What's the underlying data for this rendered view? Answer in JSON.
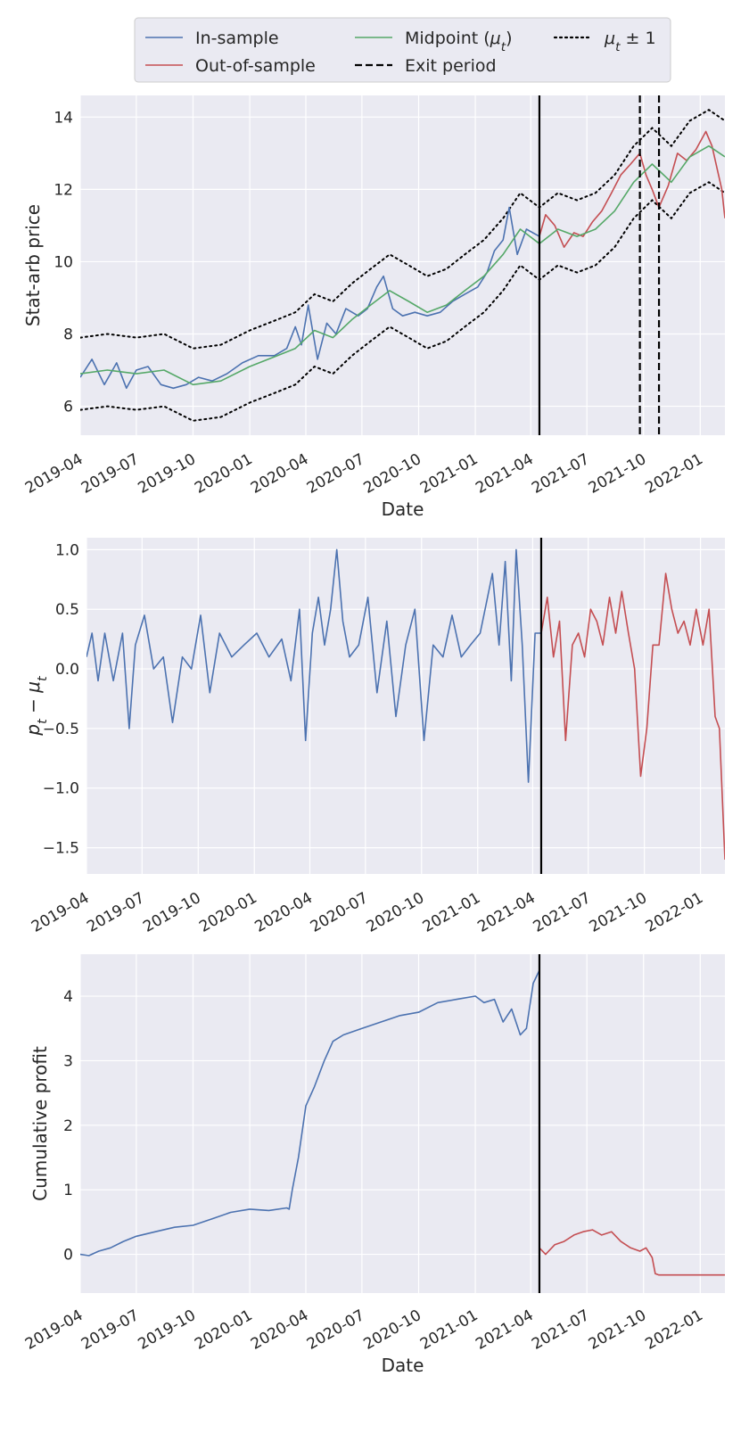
{
  "legend": {
    "location": "top-center",
    "entries": [
      {
        "label": "In-sample",
        "style": "solid",
        "color": "#4c72b0"
      },
      {
        "label": "Out-of-sample",
        "style": "solid",
        "color": "#c44e52"
      },
      {
        "label": "Midpoint (μt)",
        "style": "solid",
        "color": "#55a868"
      },
      {
        "label": "Exit period",
        "style": "dashed",
        "color": "#000000"
      },
      {
        "label": "μt ± 1",
        "style": "dotted",
        "color": "#000000"
      }
    ]
  },
  "chart_data": [
    {
      "type": "line",
      "xlabel": "Date",
      "ylabel": "Stat-arb price",
      "xlim": [
        "2019-04-01",
        "2022-02-10"
      ],
      "ylim": [
        5.2,
        14.6
      ],
      "xticks": [
        "2019-04",
        "2019-07",
        "2019-10",
        "2020-01",
        "2020-04",
        "2020-07",
        "2020-10",
        "2021-01",
        "2021-04",
        "2021-07",
        "2021-10",
        "2022-01"
      ],
      "yticks": [
        6,
        8,
        10,
        12,
        14
      ],
      "grid": true,
      "split_date": "2021-04-15",
      "exit_periods": [
        "2021-09-25",
        "2021-10-26"
      ],
      "series": [
        {
          "name": "In-sample",
          "color": "#4c72b0",
          "x": [
            "2019-04-01",
            "2019-04-20",
            "2019-05-10",
            "2019-05-30",
            "2019-06-15",
            "2019-07-01",
            "2019-07-20",
            "2019-08-10",
            "2019-08-30",
            "2019-09-20",
            "2019-10-10",
            "2019-11-01",
            "2019-11-25",
            "2019-12-20",
            "2020-01-15",
            "2020-02-10",
            "2020-03-01",
            "2020-03-15",
            "2020-03-25",
            "2020-04-05",
            "2020-04-20",
            "2020-05-05",
            "2020-05-20",
            "2020-06-05",
            "2020-06-25",
            "2020-07-10",
            "2020-07-25",
            "2020-08-05",
            "2020-08-20",
            "2020-09-05",
            "2020-09-25",
            "2020-10-15",
            "2020-11-05",
            "2020-11-25",
            "2020-12-15",
            "2021-01-05",
            "2021-01-20",
            "2021-02-01",
            "2021-02-15",
            "2021-02-25",
            "2021-03-10",
            "2021-03-25",
            "2021-04-15"
          ],
          "y": [
            6.8,
            7.3,
            6.6,
            7.2,
            6.5,
            7.0,
            7.1,
            6.6,
            6.5,
            6.6,
            6.8,
            6.7,
            6.9,
            7.2,
            7.4,
            7.4,
            7.6,
            8.2,
            7.7,
            8.8,
            7.3,
            8.3,
            8.0,
            8.7,
            8.5,
            8.7,
            9.3,
            9.6,
            8.7,
            8.5,
            8.6,
            8.5,
            8.6,
            8.9,
            9.1,
            9.3,
            9.7,
            10.3,
            10.6,
            11.5,
            10.2,
            10.9,
            10.7
          ]
        },
        {
          "name": "Out-of-sample",
          "color": "#c44e52",
          "x": [
            "2021-04-15",
            "2021-04-25",
            "2021-05-10",
            "2021-05-25",
            "2021-06-10",
            "2021-06-25",
            "2021-07-10",
            "2021-07-25",
            "2021-08-10",
            "2021-08-25",
            "2021-09-10",
            "2021-09-25",
            "2021-10-05",
            "2021-10-15",
            "2021-10-26",
            "2021-11-10",
            "2021-11-25",
            "2021-12-10",
            "2021-12-25",
            "2022-01-10",
            "2022-01-20",
            "2022-01-28",
            "2022-02-05",
            "2022-02-10"
          ],
          "y": [
            10.7,
            11.3,
            11.0,
            10.4,
            10.8,
            10.7,
            11.1,
            11.4,
            11.9,
            12.4,
            12.7,
            13.0,
            12.4,
            12.0,
            11.5,
            12.1,
            13.0,
            12.8,
            13.1,
            13.6,
            13.2,
            12.6,
            12.0,
            11.2
          ]
        },
        {
          "name": "Midpoint (μt)",
          "color": "#55a868",
          "x": [
            "2019-04-01",
            "2019-05-15",
            "2019-07-01",
            "2019-08-15",
            "2019-10-01",
            "2019-11-15",
            "2020-01-01",
            "2020-02-15",
            "2020-03-15",
            "2020-04-15",
            "2020-05-15",
            "2020-06-15",
            "2020-07-15",
            "2020-08-15",
            "2020-09-15",
            "2020-10-15",
            "2020-11-15",
            "2020-12-15",
            "2021-01-15",
            "2021-02-15",
            "2021-03-15",
            "2021-04-15",
            "2021-05-15",
            "2021-06-15",
            "2021-07-15",
            "2021-08-15",
            "2021-09-15",
            "2021-10-15",
            "2021-11-15",
            "2021-12-15",
            "2022-01-15",
            "2022-02-10"
          ],
          "y": [
            6.9,
            7.0,
            6.9,
            7.0,
            6.6,
            6.7,
            7.1,
            7.4,
            7.6,
            8.1,
            7.9,
            8.4,
            8.8,
            9.2,
            8.9,
            8.6,
            8.8,
            9.2,
            9.6,
            10.2,
            10.9,
            10.5,
            10.9,
            10.7,
            10.9,
            11.4,
            12.2,
            12.7,
            12.2,
            12.9,
            13.2,
            12.9
          ]
        }
      ]
    },
    {
      "type": "line",
      "xlabel": "",
      "ylabel": "pt − μt",
      "xlim": [
        "2019-04-01",
        "2022-02-10"
      ],
      "ylim": [
        -1.72,
        1.1
      ],
      "xticks": [
        "2019-04",
        "2019-07",
        "2019-10",
        "2020-01",
        "2020-04",
        "2020-07",
        "2020-10",
        "2021-01",
        "2021-04",
        "2021-07",
        "2021-10",
        "2022-01"
      ],
      "yticks": [
        -1.5,
        -1.0,
        -0.5,
        0.0,
        0.5,
        1.0
      ],
      "grid": true,
      "split_date": "2021-04-15",
      "series": [
        {
          "name": "In-sample",
          "color": "#4c72b0",
          "x": [
            "2019-04-01",
            "2019-04-10",
            "2019-04-20",
            "2019-05-01",
            "2019-05-15",
            "2019-05-30",
            "2019-06-10",
            "2019-06-20",
            "2019-07-05",
            "2019-07-20",
            "2019-08-05",
            "2019-08-20",
            "2019-09-05",
            "2019-09-20",
            "2019-10-05",
            "2019-10-20",
            "2019-11-05",
            "2019-11-25",
            "2019-12-15",
            "2020-01-05",
            "2020-01-25",
            "2020-02-15",
            "2020-03-01",
            "2020-03-15",
            "2020-03-25",
            "2020-04-05",
            "2020-04-15",
            "2020-04-25",
            "2020-05-05",
            "2020-05-15",
            "2020-05-25",
            "2020-06-05",
            "2020-06-20",
            "2020-07-05",
            "2020-07-20",
            "2020-08-05",
            "2020-08-20",
            "2020-09-05",
            "2020-09-20",
            "2020-10-05",
            "2020-10-20",
            "2020-11-05",
            "2020-11-20",
            "2020-12-05",
            "2020-12-20",
            "2021-01-05",
            "2021-01-15",
            "2021-01-25",
            "2021-02-05",
            "2021-02-15",
            "2021-02-25",
            "2021-03-05",
            "2021-03-15",
            "2021-03-25",
            "2021-04-05",
            "2021-04-15"
          ],
          "y": [
            0.1,
            0.3,
            -0.1,
            0.3,
            -0.1,
            0.3,
            -0.5,
            0.2,
            0.45,
            0.0,
            0.1,
            -0.45,
            0.1,
            0.0,
            0.45,
            -0.2,
            0.3,
            0.1,
            0.2,
            0.3,
            0.1,
            0.25,
            -0.1,
            0.5,
            -0.6,
            0.3,
            0.6,
            0.2,
            0.5,
            1.0,
            0.4,
            0.1,
            0.2,
            0.6,
            -0.2,
            0.4,
            -0.4,
            0.2,
            0.5,
            -0.6,
            0.2,
            0.1,
            0.45,
            0.1,
            0.2,
            0.3,
            0.55,
            0.8,
            0.2,
            0.9,
            -0.1,
            1.0,
            0.2,
            -0.95,
            0.3,
            0.3
          ]
        },
        {
          "name": "Out-of-sample",
          "color": "#c44e52",
          "x": [
            "2021-04-15",
            "2021-04-25",
            "2021-05-05",
            "2021-05-15",
            "2021-05-25",
            "2021-06-05",
            "2021-06-15",
            "2021-06-25",
            "2021-07-05",
            "2021-07-15",
            "2021-07-25",
            "2021-08-05",
            "2021-08-15",
            "2021-08-25",
            "2021-09-05",
            "2021-09-15",
            "2021-09-25",
            "2021-10-05",
            "2021-10-15",
            "2021-10-25",
            "2021-11-05",
            "2021-11-15",
            "2021-11-25",
            "2021-12-05",
            "2021-12-15",
            "2021-12-25",
            "2022-01-05",
            "2022-01-15",
            "2022-01-25",
            "2022-02-01",
            "2022-02-10"
          ],
          "y": [
            0.3,
            0.6,
            0.1,
            0.4,
            -0.6,
            0.2,
            0.3,
            0.1,
            0.5,
            0.4,
            0.2,
            0.6,
            0.3,
            0.65,
            0.3,
            0.0,
            -0.9,
            -0.5,
            0.2,
            0.2,
            0.8,
            0.5,
            0.3,
            0.4,
            0.2,
            0.5,
            0.2,
            0.5,
            -0.4,
            -0.5,
            -1.6
          ]
        }
      ]
    },
    {
      "type": "line",
      "xlabel": "Date",
      "ylabel": "Cumulative profit",
      "xlim": [
        "2019-04-01",
        "2022-02-10"
      ],
      "ylim": [
        -0.6,
        4.65
      ],
      "xticks": [
        "2019-04",
        "2019-07",
        "2019-10",
        "2020-01",
        "2020-04",
        "2020-07",
        "2020-10",
        "2021-01",
        "2021-04",
        "2021-07",
        "2021-10",
        "2022-01"
      ],
      "yticks": [
        0,
        1,
        2,
        3,
        4
      ],
      "grid": true,
      "split_date": "2021-04-15",
      "series": [
        {
          "name": "In-sample",
          "color": "#4c72b0",
          "x": [
            "2019-04-01",
            "2019-04-15",
            "2019-05-01",
            "2019-05-20",
            "2019-06-10",
            "2019-07-01",
            "2019-08-01",
            "2019-09-01",
            "2019-10-01",
            "2019-11-01",
            "2019-12-01",
            "2020-01-01",
            "2020-02-01",
            "2020-03-01",
            "2020-03-05",
            "2020-03-10",
            "2020-03-20",
            "2020-04-01",
            "2020-04-15",
            "2020-05-01",
            "2020-05-15",
            "2020-06-01",
            "2020-07-01",
            "2020-08-01",
            "2020-09-01",
            "2020-10-01",
            "2020-11-01",
            "2020-12-01",
            "2021-01-01",
            "2021-01-15",
            "2021-02-01",
            "2021-02-15",
            "2021-03-01",
            "2021-03-15",
            "2021-03-25",
            "2021-04-05",
            "2021-04-15"
          ],
          "y": [
            0.0,
            -0.02,
            0.05,
            0.1,
            0.2,
            0.28,
            0.35,
            0.42,
            0.45,
            0.55,
            0.65,
            0.7,
            0.68,
            0.72,
            0.7,
            1.0,
            1.5,
            2.3,
            2.6,
            3.0,
            3.3,
            3.4,
            3.5,
            3.6,
            3.7,
            3.75,
            3.9,
            3.95,
            4.0,
            3.9,
            3.95,
            3.6,
            3.8,
            3.4,
            3.5,
            4.2,
            4.4
          ]
        },
        {
          "name": "Out-of-sample",
          "color": "#c44e52",
          "x": [
            "2021-04-15",
            "2021-04-25",
            "2021-05-10",
            "2021-05-25",
            "2021-06-10",
            "2021-06-25",
            "2021-07-10",
            "2021-07-25",
            "2021-08-10",
            "2021-08-25",
            "2021-09-10",
            "2021-09-25",
            "2021-10-05",
            "2021-10-15",
            "2021-10-20",
            "2021-10-26",
            "2022-02-10"
          ],
          "y": [
            0.1,
            0.0,
            0.15,
            0.2,
            0.3,
            0.35,
            0.38,
            0.3,
            0.35,
            0.2,
            0.1,
            0.05,
            0.1,
            -0.05,
            -0.3,
            -0.32,
            -0.32
          ]
        }
      ]
    }
  ]
}
